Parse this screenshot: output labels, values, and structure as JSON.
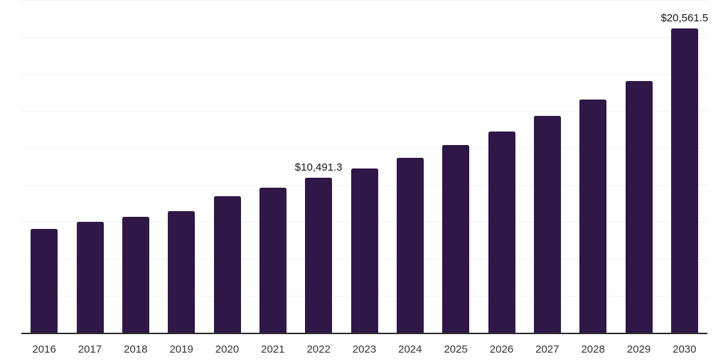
{
  "chart_data": {
    "type": "bar",
    "title": "",
    "xlabel": "",
    "ylabel": "",
    "categories": [
      "2016",
      "2017",
      "2018",
      "2019",
      "2020",
      "2021",
      "2022",
      "2023",
      "2024",
      "2025",
      "2026",
      "2027",
      "2028",
      "2029",
      "2030"
    ],
    "values": [
      7050,
      7530,
      7870,
      8250,
      9260,
      9830,
      10491.3,
      11130,
      11850,
      12710,
      13620,
      14680,
      15780,
      17030,
      20561.5
    ],
    "data_labels": [
      "",
      "",
      "",
      "",
      "",
      "",
      "$10,491.3",
      "",
      "",
      "",
      "",
      "",
      "",
      "",
      "$20,561.5"
    ],
    "ylim": [
      0,
      22500
    ],
    "gridline_step": 2500,
    "grid": "horizontal",
    "y_tick_labels_visible": false,
    "legend_position": "none",
    "colors": {
      "bar": "#2F1747",
      "gridline": "#F1F1F2",
      "axis_line": "#2B2B2B",
      "tick_label": "#333333",
      "data_label": "#141414",
      "background": "#FFFFFF"
    }
  }
}
